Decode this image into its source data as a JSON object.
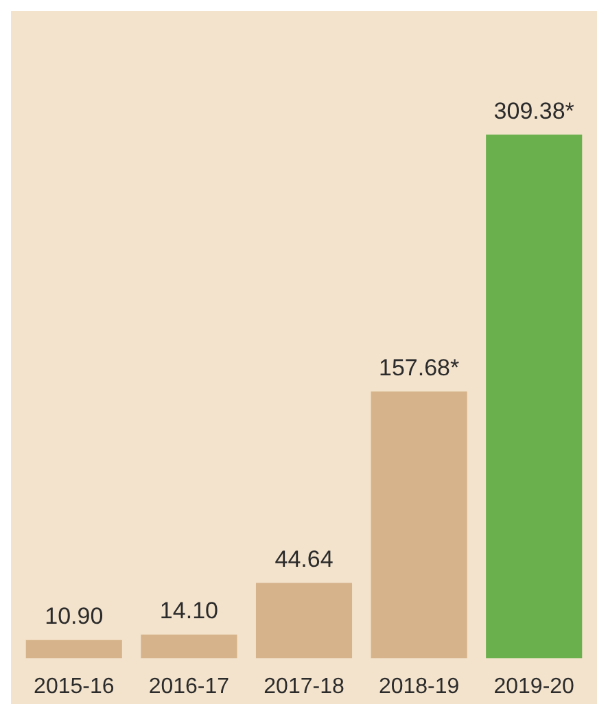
{
  "chart_data": {
    "type": "bar",
    "categories": [
      "2015-16",
      "2016-17",
      "2017-18",
      "2018-19",
      "2019-20"
    ],
    "values": [
      10.9,
      14.1,
      44.64,
      157.68,
      309.38
    ],
    "colors": [
      "#d6b38a",
      "#d6b38a",
      "#d6b38a",
      "#d6b38a",
      "#6ab04c"
    ],
    "value_labels": [
      "10.90",
      "14.10",
      "44.64",
      "157.68*",
      "309.38*"
    ],
    "grid": false,
    "legend": false
  }
}
